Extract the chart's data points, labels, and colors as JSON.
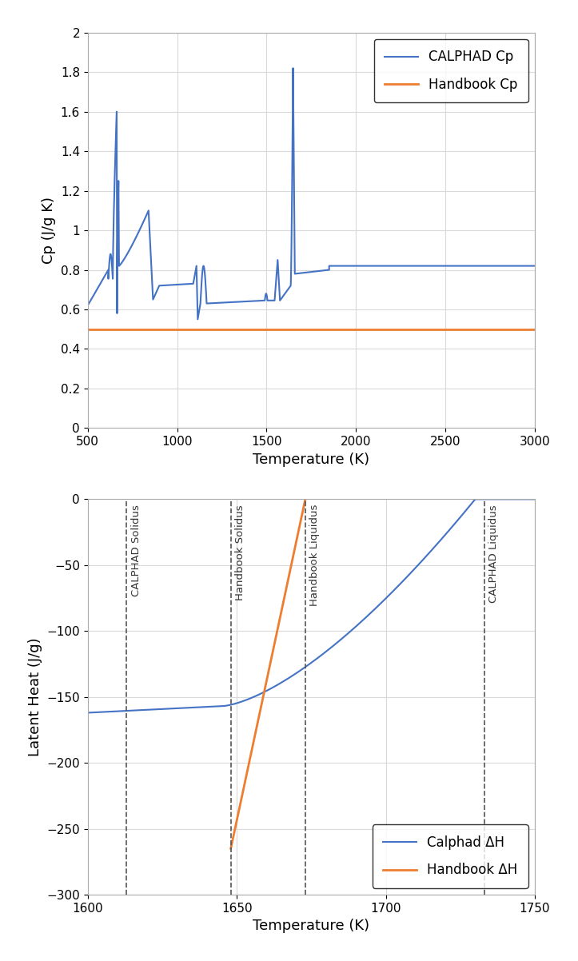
{
  "cp_plot": {
    "xlabel": "Temperature (K)",
    "ylabel": "Cp (J/g K)",
    "xlim": [
      500,
      3000
    ],
    "ylim": [
      0,
      2
    ],
    "yticks": [
      0,
      0.2,
      0.4,
      0.6,
      0.8,
      1.0,
      1.2,
      1.4,
      1.6,
      1.8,
      2.0
    ],
    "xticks": [
      500,
      1000,
      1500,
      2000,
      2500,
      3000
    ],
    "handbook_cp_value": 0.5,
    "calphad_color": "#4472C4",
    "handbook_color": "#ED7D31",
    "legend_labels": [
      "CALPHAD Cp",
      "Handbook Cp"
    ]
  },
  "dh_plot": {
    "xlabel": "Temperature (K)",
    "ylabel": "Latent Heat (J/g)",
    "xlim": [
      1600,
      1750
    ],
    "ylim": [
      -300,
      0
    ],
    "yticks": [
      0,
      -50,
      -100,
      -150,
      -200,
      -250,
      -300
    ],
    "xticks": [
      1600,
      1650,
      1700,
      1750
    ],
    "calphad_solidus": 1613,
    "handbook_solidus": 1648,
    "handbook_liquidus": 1673,
    "calphad_liquidus": 1733,
    "calphad_color": "#4472C4",
    "handbook_color": "#ED7D31",
    "legend_labels": [
      "Calphad ΔH",
      "Handbook ΔH"
    ],
    "vline_labels": [
      "CALPHAD Solidus",
      "Handbook Solidus",
      "Handbook Liquidus",
      "CALPHAD Liquidus"
    ]
  },
  "background_color": "#ffffff",
  "grid_color": "#D9D9D9"
}
